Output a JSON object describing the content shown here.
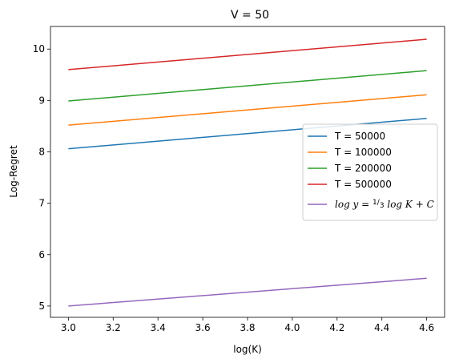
{
  "chart_data": {
    "type": "line",
    "title": "V = 50",
    "xlabel": "log(K)",
    "ylabel": "Log-Regret",
    "xlim": [
      2.92,
      4.68
    ],
    "ylim": [
      4.78,
      10.44
    ],
    "xticks": [
      "3.0",
      "3.2",
      "3.4",
      "3.6",
      "3.8",
      "4.0",
      "4.2",
      "4.4",
      "4.6"
    ],
    "xtick_values": [
      3.0,
      3.2,
      3.4,
      3.6,
      3.8,
      4.0,
      4.2,
      4.4,
      4.6
    ],
    "yticks": [
      "5",
      "6",
      "7",
      "8",
      "9",
      "10"
    ],
    "ytick_values": [
      5,
      6,
      7,
      8,
      9,
      10
    ],
    "grid": false,
    "legend_position": "center-right",
    "series": [
      {
        "name": "T = 50000",
        "color": "#1f77b4",
        "x": [
          3.0,
          4.6
        ],
        "y": [
          8.06,
          8.65
        ]
      },
      {
        "name": "T = 100000",
        "color": "#ff7f0e",
        "x": [
          3.0,
          4.6
        ],
        "y": [
          8.52,
          9.11
        ]
      },
      {
        "name": "T = 200000",
        "color": "#2ca02c",
        "x": [
          3.0,
          4.6
        ],
        "y": [
          8.99,
          9.58
        ]
      },
      {
        "name": "T = 500000",
        "color": "#d62728",
        "x": [
          3.0,
          4.6
        ],
        "y": [
          9.6,
          10.19
        ]
      },
      {
        "name": "log y = 1/3 log K + C",
        "color": "#9467bd",
        "x": [
          3.0,
          4.6
        ],
        "y": [
          5.0,
          5.54
        ]
      }
    ]
  }
}
